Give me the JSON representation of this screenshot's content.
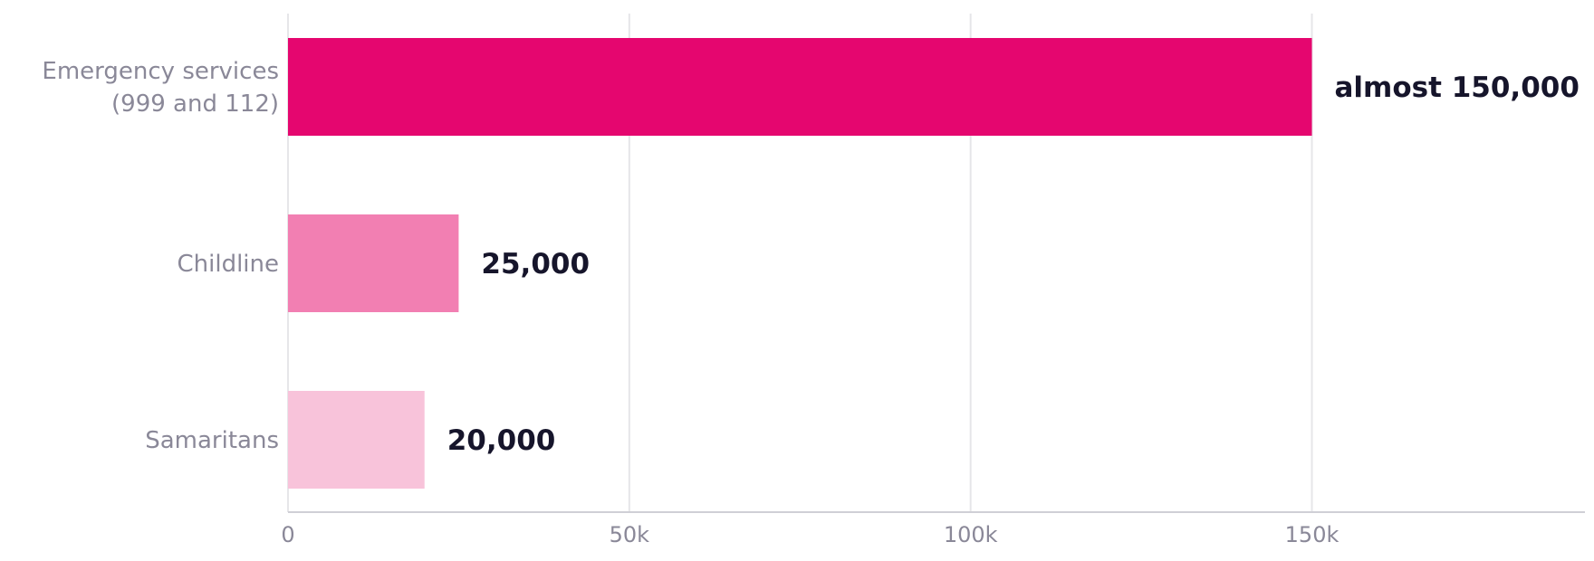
{
  "chart_data": {
    "type": "bar",
    "orientation": "horizontal",
    "categories": [
      "Emergency services (999 and 112)",
      "Childline",
      "Samaritans"
    ],
    "category_lines": [
      [
        "Emergency services",
        "(999 and 112)"
      ],
      [
        "Childline"
      ],
      [
        "Samaritans"
      ]
    ],
    "values": [
      150000,
      25000,
      20000
    ],
    "data_labels": [
      "almost 150,000",
      "25,000",
      "20,000"
    ],
    "colors": [
      "#e5066f",
      "#f27fb2",
      "#f8c3da"
    ],
    "x_ticks": [
      0,
      50000,
      100000,
      150000
    ],
    "x_tick_labels": [
      "0",
      "50k",
      "100k",
      "150k"
    ],
    "xlim": [
      0,
      190000
    ],
    "grid": "vertical",
    "legend": "none",
    "title": "",
    "xlabel": "",
    "ylabel": ""
  }
}
